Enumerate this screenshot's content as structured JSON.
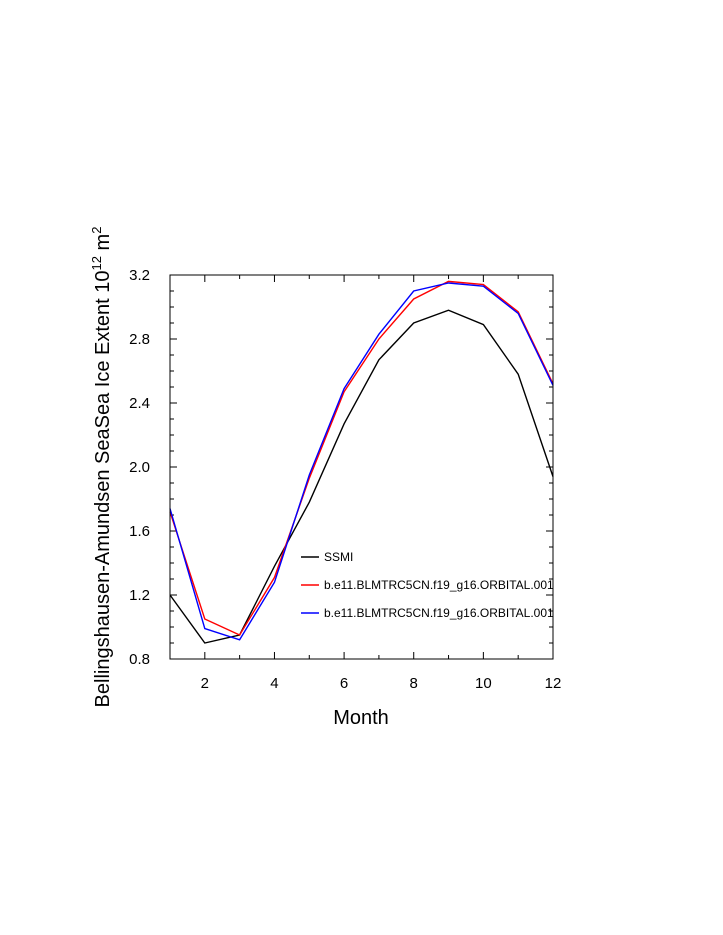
{
  "chart_data": {
    "type": "line",
    "xlabel": "Month",
    "ylabel": {
      "prefix": "Bellingshausen-Amundsen SeaSea Ice Extent 10",
      "exponent1": "12",
      "unit": " m",
      "exponent2": "2"
    },
    "xlim": [
      1,
      12
    ],
    "ylim": [
      0.8,
      3.2
    ],
    "xticks": [
      "2",
      "4",
      "6",
      "8",
      "10",
      "12"
    ],
    "xtick_values": [
      2,
      4,
      6,
      8,
      10,
      12
    ],
    "yticks": [
      "0.8",
      "1.2",
      "1.6",
      "2.0",
      "2.4",
      "2.8",
      "3.2"
    ],
    "ytick_values": [
      0.8,
      1.2,
      1.6,
      2.0,
      2.4,
      2.8,
      3.2
    ],
    "legend_position": "lower-right",
    "x": [
      1,
      2,
      3,
      4,
      5,
      6,
      7,
      8,
      9,
      10,
      11,
      12
    ],
    "series": [
      {
        "name": "SSMI",
        "color": "#000000",
        "values": [
          1.2,
          0.9,
          0.95,
          1.38,
          1.78,
          2.27,
          2.67,
          2.9,
          2.98,
          2.89,
          2.58,
          1.94
        ]
      },
      {
        "name": "b.e11.BLMTRC5CN.f19_g16.ORBITAL.001",
        "color": "#ff0000",
        "values": [
          1.72,
          1.05,
          0.95,
          1.31,
          1.93,
          2.47,
          2.8,
          3.05,
          3.16,
          3.14,
          2.97,
          2.52
        ]
      },
      {
        "name": "b.e11.BLMTRC5CN.f19_g16.ORBITAL.001",
        "color": "#0000ff",
        "values": [
          1.74,
          0.99,
          0.92,
          1.28,
          1.95,
          2.49,
          2.83,
          3.1,
          3.15,
          3.13,
          2.96,
          2.51
        ]
      }
    ]
  }
}
